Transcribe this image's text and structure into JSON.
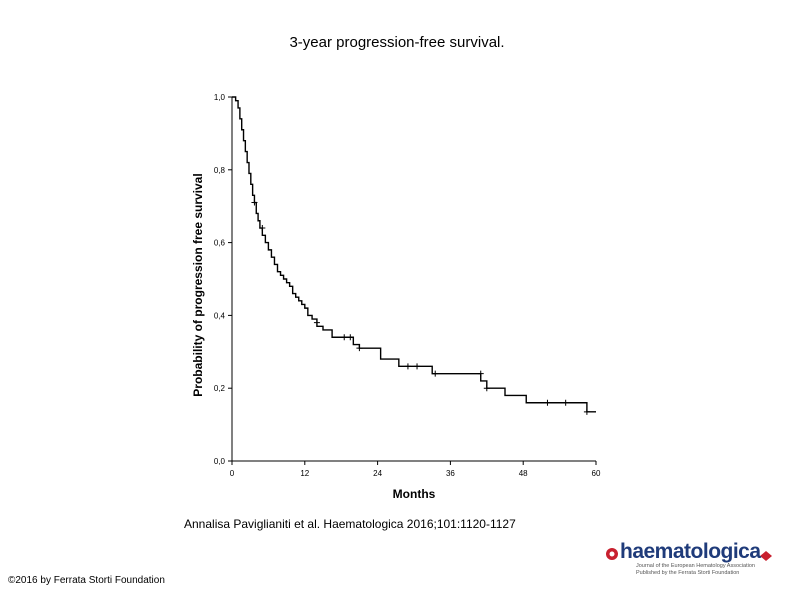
{
  "title": "3-year progression-free survival.",
  "citation": "Annalisa Paviglianiti et al. Haematologica 2016;101:1120-1127",
  "copyright": "©2016 by Ferrata Storti Foundation",
  "logo": {
    "word": "haematologica",
    "subline1": "Journal of the European Hematology Association",
    "subline2": "Published by the Ferrata Storti Foundation"
  },
  "colors": {
    "curve": "#000000",
    "axis": "#000000",
    "logo_blue": "#1f3b7a",
    "logo_red": "#c8202f"
  },
  "chart_data": {
    "type": "line",
    "title": "3-year progression-free survival.",
    "xlabel": "Months",
    "ylabel": "Probability of progression free survival",
    "xlim": [
      0,
      60
    ],
    "ylim": [
      0,
      1.0
    ],
    "xticks": [
      "0",
      "12",
      "24",
      "36",
      "48",
      "60"
    ],
    "yticks": [
      "0,0",
      "0,2",
      "0,4",
      "0,6",
      "0,8",
      "1,0"
    ],
    "series": [
      {
        "name": "Progression-free survival",
        "step": true,
        "x": [
          0,
          0.6,
          1.0,
          1.3,
          1.6,
          1.9,
          2.2,
          2.5,
          2.8,
          3.1,
          3.4,
          3.7,
          4.0,
          4.3,
          4.6,
          5.0,
          5.5,
          6.0,
          6.5,
          7.0,
          7.5,
          8.0,
          8.5,
          9.0,
          9.5,
          10.0,
          10.5,
          11.0,
          11.5,
          12.0,
          12.5,
          13.2,
          14.0,
          15.0,
          16.5,
          20.0,
          21.0,
          24.5,
          27.5,
          33.0,
          41.0,
          42.0,
          45.0,
          48.5,
          58.5,
          60.0
        ],
        "y": [
          1.0,
          0.99,
          0.97,
          0.94,
          0.91,
          0.88,
          0.85,
          0.82,
          0.79,
          0.76,
          0.73,
          0.71,
          0.68,
          0.66,
          0.64,
          0.62,
          0.6,
          0.58,
          0.56,
          0.54,
          0.52,
          0.51,
          0.5,
          0.49,
          0.48,
          0.46,
          0.45,
          0.44,
          0.43,
          0.42,
          0.4,
          0.39,
          0.37,
          0.36,
          0.34,
          0.32,
          0.31,
          0.28,
          0.26,
          0.24,
          0.22,
          0.2,
          0.18,
          0.16,
          0.135,
          0.135
        ]
      }
    ],
    "censored": [
      {
        "x": 3.7,
        "y": 0.71
      },
      {
        "x": 5.0,
        "y": 0.64
      },
      {
        "x": 14.0,
        "y": 0.38
      },
      {
        "x": 18.5,
        "y": 0.34
      },
      {
        "x": 19.5,
        "y": 0.34
      },
      {
        "x": 21.0,
        "y": 0.31
      },
      {
        "x": 29.0,
        "y": 0.26
      },
      {
        "x": 30.5,
        "y": 0.26
      },
      {
        "x": 33.5,
        "y": 0.24
      },
      {
        "x": 41.0,
        "y": 0.24
      },
      {
        "x": 42.0,
        "y": 0.2
      },
      {
        "x": 52.0,
        "y": 0.16
      },
      {
        "x": 55.0,
        "y": 0.16
      },
      {
        "x": 58.5,
        "y": 0.135
      }
    ]
  }
}
